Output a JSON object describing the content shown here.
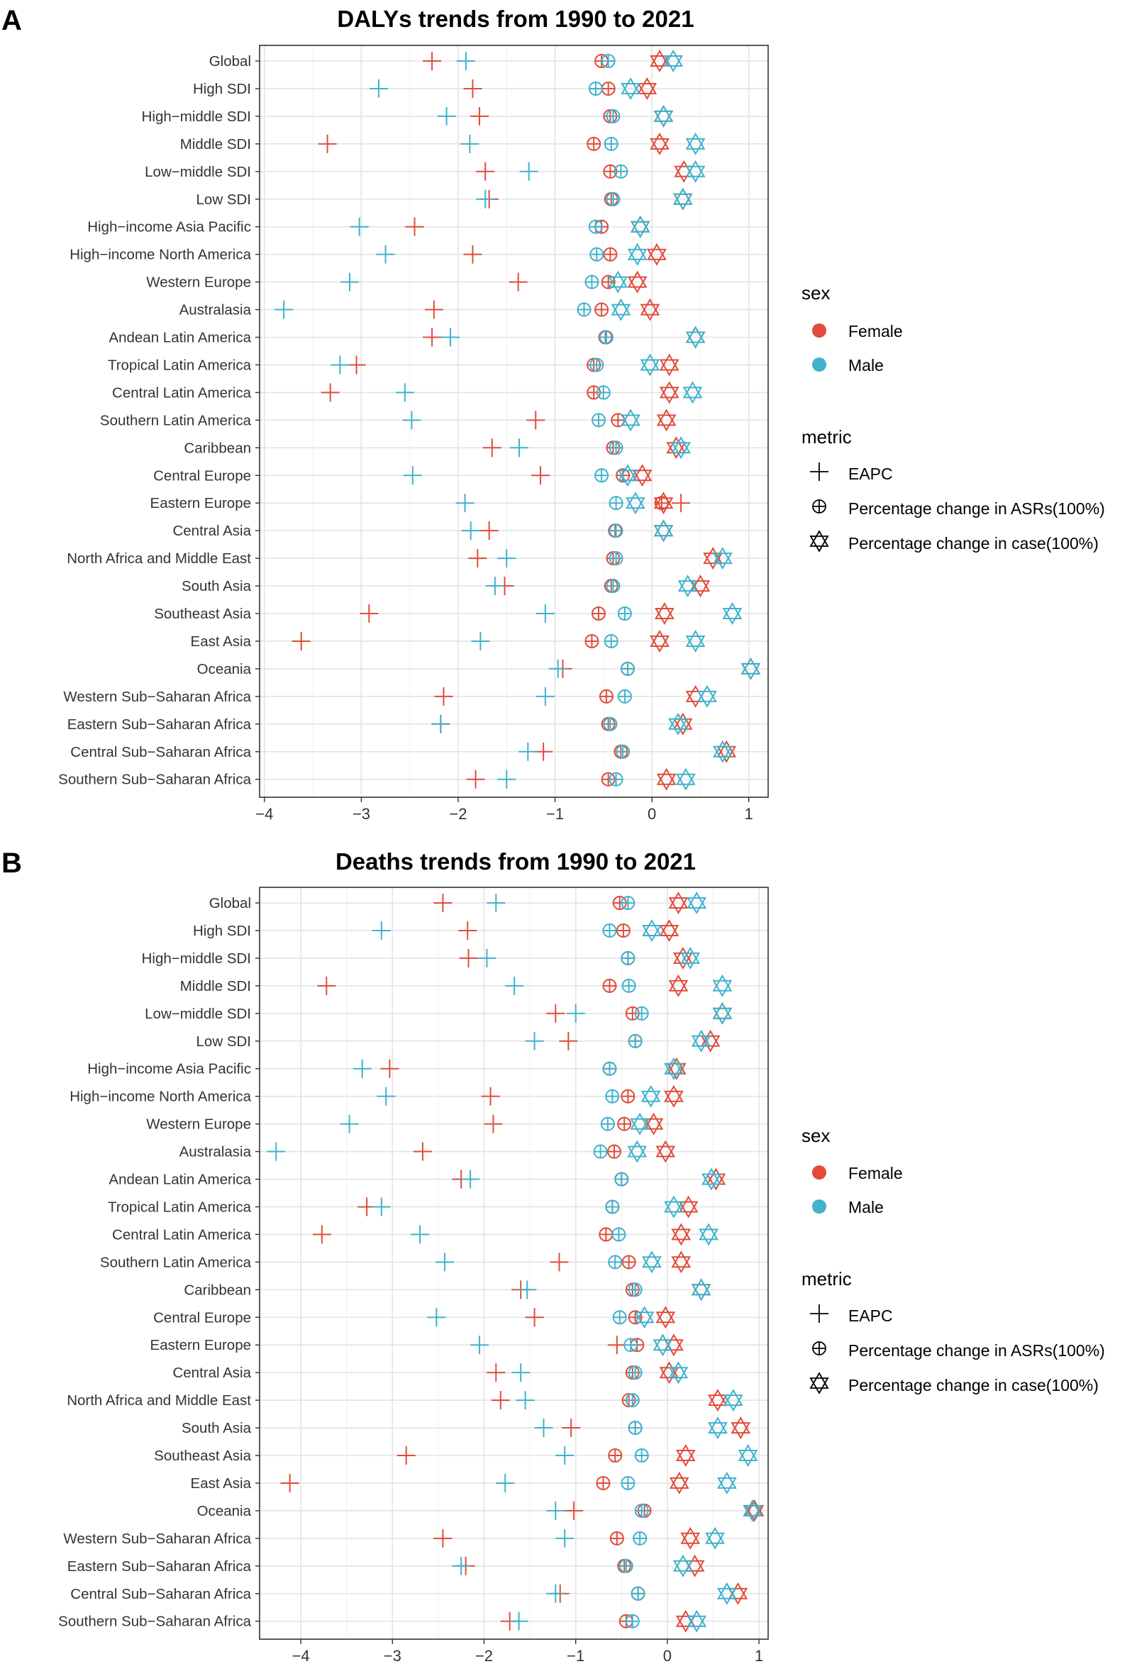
{
  "chart_data": [
    {
      "panel_label": "A",
      "type": "scatter",
      "title": "DALYs trends from 1990 to 2021",
      "xlim": [
        -4.05,
        1.2
      ],
      "xticks": [
        -4,
        -3,
        -2,
        -1,
        0,
        1
      ],
      "xtick_labels": [
        "−4",
        "−3",
        "−2",
        "−1",
        "0",
        "1"
      ],
      "categories": [
        "Global",
        "High SDI",
        "High−middle SDI",
        "Middle SDI",
        "Low−middle SDI",
        "Low SDI",
        "High−income Asia Pacific",
        "High−income North America",
        "Western Europe",
        "Australasia",
        "Andean Latin America",
        "Tropical Latin America",
        "Central Latin America",
        "Southern Latin America",
        "Caribbean",
        "Central Europe",
        "Eastern Europe",
        "Central Asia",
        "North Africa and Middle East",
        "South Asia",
        "Southeast Asia",
        "East Asia",
        "Oceania",
        "Western Sub−Saharan Africa",
        "Eastern Sub−Saharan Africa",
        "Central Sub−Saharan Africa",
        "Southern Sub−Saharan Africa"
      ],
      "series": [
        {
          "name": "EAPC",
          "sex": "Female",
          "metric": "EAPC",
          "values": [
            -2.27,
            -1.85,
            -1.78,
            -3.35,
            -1.72,
            -1.68,
            -2.45,
            -1.85,
            -1.38,
            -2.25,
            -2.27,
            -3.05,
            -3.32,
            -1.2,
            -1.65,
            -1.15,
            0.3,
            -1.68,
            -1.8,
            -1.52,
            -2.92,
            -3.62,
            -0.92,
            -2.15,
            -2.18,
            -1.12,
            -1.82
          ]
        },
        {
          "name": "EAPC",
          "sex": "Male",
          "metric": "EAPC",
          "values": [
            -1.92,
            -2.82,
            -2.12,
            -1.88,
            -1.27,
            -1.72,
            -3.02,
            -2.75,
            -3.12,
            -3.8,
            -2.08,
            -3.22,
            -2.55,
            -2.48,
            -1.37,
            -2.47,
            -1.93,
            -1.87,
            -1.5,
            -1.62,
            -1.1,
            -1.77,
            -0.97,
            -1.1,
            -2.18,
            -1.28,
            -1.5
          ]
        },
        {
          "name": "Percentage change in ASRs(100%)",
          "sex": "Female",
          "metric": "ASR",
          "values": [
            -0.52,
            -0.45,
            -0.43,
            -0.6,
            -0.43,
            -0.42,
            -0.52,
            -0.43,
            -0.45,
            -0.52,
            -0.48,
            -0.6,
            -0.6,
            -0.35,
            -0.4,
            -0.3,
            0.1,
            -0.38,
            -0.4,
            -0.42,
            -0.55,
            -0.62,
            -0.25,
            -0.47,
            -0.45,
            -0.32,
            -0.45
          ]
        },
        {
          "name": "Percentage change in ASRs(100%)",
          "sex": "Male",
          "metric": "ASR",
          "values": [
            -0.45,
            -0.58,
            -0.4,
            -0.42,
            -0.32,
            -0.4,
            -0.58,
            -0.57,
            -0.62,
            -0.7,
            -0.47,
            -0.57,
            -0.5,
            -0.55,
            -0.37,
            -0.52,
            -0.37,
            -0.37,
            -0.37,
            -0.4,
            -0.28,
            -0.42,
            -0.25,
            -0.28,
            -0.43,
            -0.3,
            -0.37
          ]
        },
        {
          "name": "Percentage change in case(100%)",
          "sex": "Female",
          "metric": "case",
          "values": [
            0.08,
            -0.05,
            0.12,
            0.08,
            0.33,
            0.32,
            -0.12,
            0.05,
            -0.15,
            -0.02,
            0.45,
            0.18,
            0.18,
            0.15,
            0.25,
            -0.1,
            0.12,
            0.12,
            0.63,
            0.5,
            0.13,
            0.08,
            1.02,
            0.45,
            0.32,
            0.77,
            0.15
          ]
        },
        {
          "name": "Percentage change in case(100%)",
          "sex": "Male",
          "metric": "case",
          "values": [
            0.22,
            -0.22,
            0.12,
            0.45,
            0.45,
            0.32,
            -0.12,
            -0.15,
            -0.35,
            -0.32,
            0.45,
            -0.02,
            0.42,
            -0.22,
            0.3,
            -0.25,
            -0.17,
            0.12,
            0.73,
            0.37,
            0.83,
            0.45,
            1.02,
            0.57,
            0.27,
            0.73,
            0.35
          ]
        }
      ]
    },
    {
      "panel_label": "B",
      "type": "scatter",
      "title": "Deaths trends from 1990 to 2021",
      "xlim": [
        -4.45,
        1.1
      ],
      "xticks": [
        -4,
        -3,
        -2,
        -1,
        0,
        1
      ],
      "xtick_labels": [
        "−4",
        "−3",
        "−2",
        "−1",
        "0",
        "1"
      ],
      "categories": [
        "Global",
        "High SDI",
        "High−middle SDI",
        "Middle SDI",
        "Low−middle SDI",
        "Low SDI",
        "High−income Asia Pacific",
        "High−income North America",
        "Western Europe",
        "Australasia",
        "Andean Latin America",
        "Tropical Latin America",
        "Central Latin America",
        "Southern Latin America",
        "Caribbean",
        "Central Europe",
        "Eastern Europe",
        "Central Asia",
        "North Africa and Middle East",
        "South Asia",
        "Southeast Asia",
        "East Asia",
        "Oceania",
        "Western Sub−Saharan Africa",
        "Eastern Sub−Saharan Africa",
        "Central Sub−Saharan Africa",
        "Southern Sub−Saharan Africa"
      ],
      "series": [
        {
          "name": "EAPC",
          "sex": "Female",
          "metric": "EAPC",
          "values": [
            -2.45,
            -2.18,
            -2.17,
            -3.72,
            -1.22,
            -1.08,
            -3.03,
            -1.93,
            -1.9,
            -2.67,
            -2.25,
            -3.28,
            -3.77,
            -1.18,
            -1.6,
            -1.45,
            -0.55,
            -1.87,
            -1.82,
            -1.05,
            -2.85,
            -4.12,
            -1.02,
            -2.45,
            -2.2,
            -1.17,
            -1.72
          ]
        },
        {
          "name": "EAPC",
          "sex": "Male",
          "metric": "EAPC",
          "values": [
            -1.87,
            -3.12,
            -1.97,
            -1.67,
            -1.0,
            -1.45,
            -3.33,
            -3.07,
            -3.47,
            -4.27,
            -2.15,
            -3.12,
            -2.7,
            -2.43,
            -1.53,
            -2.52,
            -2.05,
            -1.6,
            -1.55,
            -1.35,
            -1.12,
            -1.77,
            -1.22,
            -1.12,
            -2.25,
            -1.22,
            -1.62
          ]
        },
        {
          "name": "Percentage change in ASRs(100%)",
          "sex": "Female",
          "metric": "ASR",
          "values": [
            -0.52,
            -0.48,
            -0.43,
            -0.63,
            -0.38,
            -0.35,
            -0.63,
            -0.43,
            -0.47,
            -0.58,
            -0.5,
            -0.6,
            -0.67,
            -0.42,
            -0.38,
            -0.35,
            -0.33,
            -0.38,
            -0.42,
            -0.35,
            -0.57,
            -0.7,
            -0.25,
            -0.55,
            -0.47,
            -0.32,
            -0.45
          ]
        },
        {
          "name": "Percentage change in ASRs(100%)",
          "sex": "Male",
          "metric": "ASR",
          "values": [
            -0.43,
            -0.63,
            -0.43,
            -0.42,
            -0.28,
            -0.35,
            -0.63,
            -0.6,
            -0.65,
            -0.73,
            -0.5,
            -0.6,
            -0.53,
            -0.57,
            -0.35,
            -0.52,
            -0.4,
            -0.35,
            -0.38,
            -0.35,
            -0.28,
            -0.43,
            -0.28,
            -0.3,
            -0.45,
            -0.32,
            -0.38
          ]
        },
        {
          "name": "Percentage change in case(100%)",
          "sex": "Female",
          "metric": "case",
          "values": [
            0.12,
            0.02,
            0.17,
            0.12,
            0.6,
            0.47,
            0.1,
            0.07,
            -0.15,
            -0.02,
            0.53,
            0.23,
            0.15,
            0.15,
            0.37,
            -0.02,
            0.07,
            0.02,
            0.55,
            0.8,
            0.2,
            0.13,
            0.95,
            0.25,
            0.3,
            0.77,
            0.2
          ]
        },
        {
          "name": "Percentage change in case(100%)",
          "sex": "Male",
          "metric": "case",
          "values": [
            0.32,
            -0.17,
            0.25,
            0.6,
            0.6,
            0.37,
            0.07,
            -0.18,
            -0.3,
            -0.33,
            0.48,
            0.07,
            0.45,
            -0.17,
            0.37,
            -0.25,
            -0.05,
            0.12,
            0.72,
            0.55,
            0.88,
            0.65,
            0.93,
            0.52,
            0.17,
            0.65,
            0.32
          ]
        }
      ]
    }
  ],
  "legend": {
    "sex_title": "sex",
    "sex_items": [
      {
        "label": "Female",
        "color": "#e04b3a"
      },
      {
        "label": "Male",
        "color": "#3fb2cc"
      }
    ],
    "metric_title": "metric",
    "metric_items": [
      {
        "label": "EAPC",
        "icon": "plus-icon"
      },
      {
        "label": "Percentage change in ASRs(100%)",
        "icon": "circle-plus-icon"
      },
      {
        "label": "Percentage change in case(100%)",
        "icon": "star-of-david-icon"
      }
    ]
  }
}
